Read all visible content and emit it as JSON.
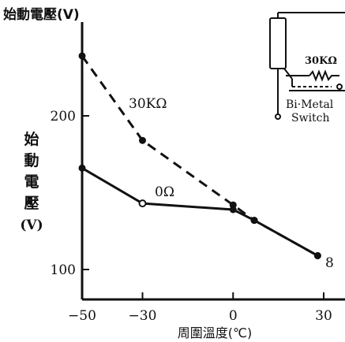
{
  "chart_data": {
    "type": "line",
    "title": "始動電壓(V)",
    "ylabel": "始動電壓(V)",
    "xlabel": "周圍溫度(℃)",
    "xlim": [
      -50,
      32
    ],
    "ylim": [
      88,
      245
    ],
    "xticks": [
      -50,
      -30,
      0,
      30
    ],
    "xtick_labels": [
      "−50",
      "−30",
      "0",
      "30"
    ],
    "yticks": [
      100,
      200
    ],
    "ytick_labels": [
      "100",
      "200"
    ],
    "grid": false,
    "legend": "none",
    "series": [
      {
        "name": "30KΩ",
        "style": "dashed",
        "x": [
          -50,
          -30,
          0,
          7,
          28
        ],
        "y": [
          239,
          184,
          142,
          132,
          109
        ]
      },
      {
        "name": "0Ω",
        "style": "solid",
        "x": [
          -50,
          -30,
          0,
          7,
          28
        ],
        "y": [
          166,
          143,
          139,
          132,
          109
        ]
      }
    ],
    "annotations": [
      {
        "text": "8"
      }
    ],
    "inset": {
      "resistor_label": "30KΩ",
      "switch_label_line1": "Bi·Metal",
      "switch_label_line2": "Switch"
    }
  }
}
